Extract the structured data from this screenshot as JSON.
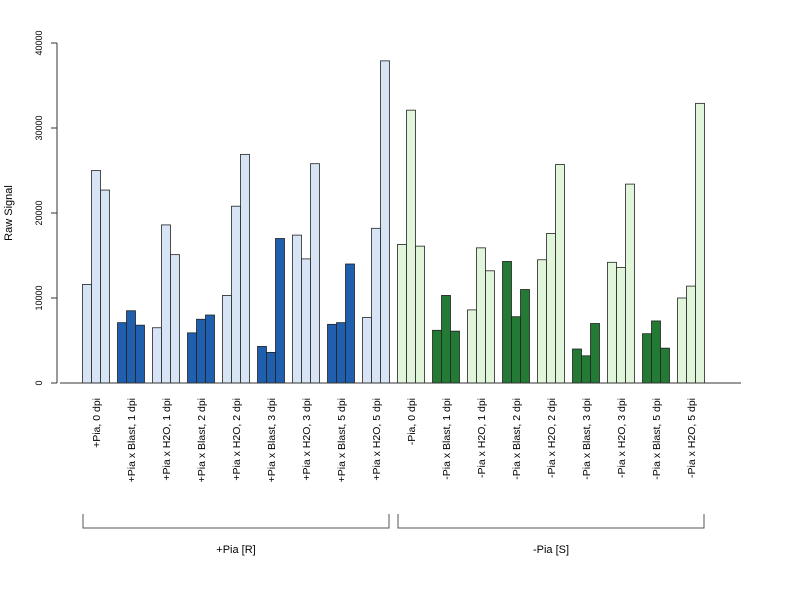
{
  "chart_data": {
    "type": "bar",
    "title": "",
    "xlabel": "",
    "ylabel": "Raw Signal",
    "ylim": [
      0,
      40000
    ],
    "yticks": [
      0,
      10000,
      20000,
      30000,
      40000
    ],
    "grid": false,
    "categories": [
      "+Pia, 0 dpi",
      "+Pia x Blast, 1 dpi",
      "+Pia x H2O, 1 dpi",
      "+Pia x Blast, 2 dpi",
      "+Pia x H2O, 2 dpi",
      "+Pia x Blast, 3 dpi",
      "+Pia x H2O, 3 dpi",
      "+Pia x Blast, 5 dpi",
      "+Pia x H2O, 5 dpi",
      "-Pia, 0 dpi",
      "-Pia x Blast, 1 dpi",
      "-Pia x H2O, 1 dpi",
      "-Pia x Blast, 2 dpi",
      "-Pia x H2O, 2 dpi",
      "-Pia x Blast, 3 dpi",
      "-Pia x H2O, 3 dpi",
      "-Pia x Blast, 5 dpi",
      "-Pia x H2O, 5 dpi"
    ],
    "replicates": [
      [
        11600,
        25000,
        22700
      ],
      [
        7100,
        8500,
        6800
      ],
      [
        6500,
        18600,
        15100
      ],
      [
        5900,
        7500,
        8000
      ],
      [
        10300,
        20800,
        26900
      ],
      [
        4300,
        3600,
        17000
      ],
      [
        17400,
        14600,
        25800
      ],
      [
        6900,
        7100,
        14000
      ],
      [
        7700,
        18200,
        37900
      ],
      [
        16300,
        32100,
        16100
      ],
      [
        6200,
        10300,
        6100
      ],
      [
        8600,
        15900,
        13200
      ],
      [
        14300,
        7800,
        11000
      ],
      [
        14500,
        17600,
        25700
      ],
      [
        4000,
        3200,
        7000
      ],
      [
        14200,
        13600,
        23400
      ],
      [
        5800,
        7300,
        4100
      ],
      [
        10000,
        11400,
        32900
      ]
    ],
    "fills": [
      "#d6e4f6",
      "#1f5fad",
      "#d6e4f6",
      "#1f5fad",
      "#d6e4f6",
      "#1f5fad",
      "#d6e4f6",
      "#1f5fad",
      "#d6e4f6",
      "#e0f5da",
      "#237a34",
      "#e0f5da",
      "#237a34",
      "#e0f5da",
      "#237a34",
      "#e0f5da",
      "#237a34",
      "#e0f5da"
    ],
    "groups": [
      {
        "label": "+Pia [R]",
        "start": 0,
        "end": 8
      },
      {
        "label": "-Pia [S]",
        "start": 9,
        "end": 17
      }
    ]
  }
}
